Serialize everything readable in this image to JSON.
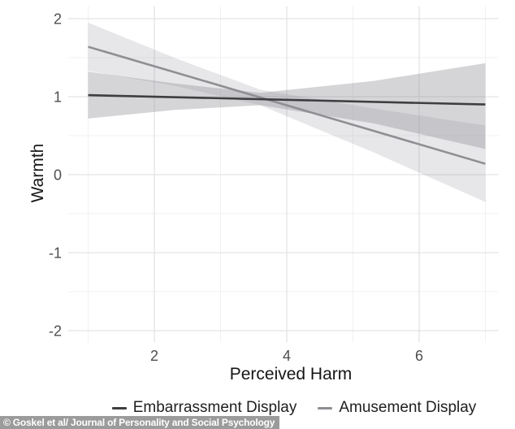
{
  "figure": {
    "caption": "© Goskel et al/ Journal of Personality and Social Psychology"
  },
  "chart_data": {
    "type": "line",
    "title": "",
    "xlabel": "Perceived Harm",
    "ylabel": "Warmth",
    "x_ticks": [
      2,
      4,
      6
    ],
    "x_minor_gridlines": [
      1,
      3,
      5,
      7
    ],
    "y_ticks": [
      2,
      1,
      0,
      -1,
      -2
    ],
    "y_minor_gridlines": [
      1.5,
      0.5,
      -0.5,
      -1.5
    ],
    "xlim": [
      0.7,
      7.2
    ],
    "ylim": [
      -2.15,
      2.16
    ],
    "grid": true,
    "legend_position": "bottom",
    "colors": {
      "major_gridline": "#e3e3e6",
      "minor_gridline": "#f0f0f2",
      "panel_background": "#ffffff"
    },
    "series": [
      {
        "name": "Embarrassment Display",
        "line_color": "#3e3e40",
        "band_color": "rgba(145,145,153,0.38)",
        "x": [
          1,
          7
        ],
        "y": [
          1.02,
          0.9
        ],
        "ci_x": [
          1,
          2.3,
          3.6,
          5.3,
          7
        ],
        "ci_upper": [
          1.32,
          1.17,
          1.05,
          1.2,
          1.43
        ],
        "ci_lower": [
          0.72,
          0.83,
          0.89,
          0.66,
          0.33
        ]
      },
      {
        "name": "Amusement Display",
        "line_color": "#8e8e93",
        "band_color": "rgba(145,145,153,0.22)",
        "x": [
          1,
          7
        ],
        "y": [
          1.64,
          0.14
        ],
        "ci_x": [
          1,
          2.3,
          3.6,
          5.3,
          7
        ],
        "ci_upper": [
          1.95,
          1.5,
          1.09,
          0.85,
          0.63
        ],
        "ci_lower": [
          1.33,
          1.14,
          0.89,
          0.29,
          -0.35
        ]
      }
    ]
  }
}
